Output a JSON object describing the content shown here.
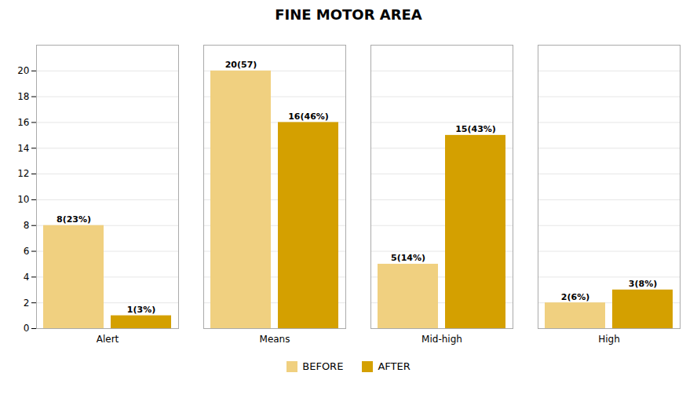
{
  "chart_data": {
    "type": "bar",
    "title": "FINE MOTOR AREA",
    "categories": [
      "Alert",
      "Means",
      "Mid-high",
      "High"
    ],
    "series": [
      {
        "name": "BEFORE",
        "color": "#F0D080",
        "values": [
          8,
          20,
          5,
          2
        ],
        "value_labels": [
          "8(23%)",
          "20(57)",
          "5(14%)",
          "2(6%)"
        ]
      },
      {
        "name": "AFTER",
        "color": "#D4A000",
        "values": [
          1,
          16,
          15,
          3
        ],
        "value_labels": [
          "1(3%)",
          "16(46%)",
          "15(43%)",
          "3(8%)"
        ]
      }
    ],
    "ylim": [
      0,
      22
    ],
    "yticks": [
      0,
      2,
      4,
      6,
      8,
      10,
      12,
      14,
      16,
      18,
      20
    ],
    "grid": true,
    "legend": "bottom",
    "data_labels": true
  }
}
